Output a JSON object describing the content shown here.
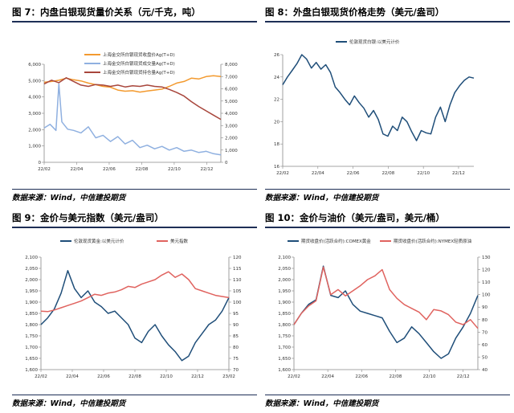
{
  "panels": [
    {
      "title": "图  7：内盘白银现货量价关系（元/千克，吨）",
      "source": "数据来源：Wind，中信建投期货"
    },
    {
      "title": "图  8：外盘白银现货价格走势（美元/盎司）",
      "source": "数据来源：Wind，中信建投期货"
    },
    {
      "title": "图  9：金价与美元指数（美元/盎司）",
      "source": "数据来源：Wind，中信建投期货"
    },
    {
      "title": "图  10：金价与油价（美元/盎司，美元/桶）",
      "source": "数据来源：Wind，中信建投期货"
    }
  ],
  "chart_data": [
    {
      "type": "line",
      "x_ticks": [
        "22/02",
        "22/04",
        "22/06",
        "22/08",
        "22/10",
        "22/12"
      ],
      "left_axis": {
        "ylim": [
          0,
          6000
        ],
        "ticks": [
          "0",
          "1,000",
          "2,000",
          "3,000",
          "4,000",
          "5,000",
          "6,000"
        ]
      },
      "right_axis": {
        "ylim": [
          0,
          8000
        ],
        "ticks": [
          "0",
          "1,000",
          "2,000",
          "3,000",
          "4,000",
          "5,000",
          "6,000",
          "7,000",
          "8,000"
        ]
      },
      "legend_position": "top",
      "series": [
        {
          "name": "上海金交所白银现货收盘价Ag(T+D)",
          "color": "#f39a2f",
          "axis": "left",
          "x": [
            0,
            0.5,
            1,
            1.5,
            2,
            2.5,
            3,
            3.5,
            4,
            4.5,
            5,
            5.5,
            6,
            6.5,
            7,
            7.5,
            8,
            8.5,
            9,
            9.5,
            10,
            10.5,
            11,
            11.5,
            12
          ],
          "values": [
            4900,
            4950,
            5020,
            5150,
            5050,
            4980,
            4850,
            4750,
            4650,
            4600,
            4420,
            4350,
            4380,
            4300,
            4360,
            4420,
            4480,
            4650,
            4850,
            4950,
            5150,
            5100,
            5250,
            5300,
            5250
          ]
        },
        {
          "name": "上海金交所白银现货成交量Ag(T+D)",
          "color": "#8fb0e0",
          "axis": "right",
          "x": [
            0,
            0.4,
            0.8,
            1.0,
            1.2,
            1.6,
            2.0,
            2.5,
            3.0,
            3.5,
            4.0,
            4.5,
            5.0,
            5.5,
            6.0,
            6.5,
            7.0,
            7.5,
            8.0,
            8.5,
            9.0,
            9.5,
            10.0,
            10.5,
            11.0,
            11.5,
            12.0
          ],
          "values": [
            2800,
            3100,
            2600,
            6400,
            3300,
            2700,
            2600,
            2400,
            2900,
            2000,
            2200,
            1700,
            2100,
            1500,
            1800,
            1200,
            1400,
            1100,
            1300,
            1000,
            1200,
            900,
            1000,
            800,
            900,
            700,
            600
          ]
        },
        {
          "name": "上海金交所白银现货持仓量Ag(T+D)",
          "color": "#a8463c",
          "axis": "right",
          "x": [
            0,
            0.5,
            1,
            1.5,
            2,
            2.5,
            3,
            3.5,
            4,
            4.5,
            5,
            5.5,
            6,
            6.5,
            7,
            7.5,
            8,
            8.5,
            9,
            9.5,
            10,
            10.5,
            11,
            11.5,
            12
          ],
          "values": [
            6400,
            6700,
            6500,
            6900,
            6600,
            6300,
            6200,
            6350,
            6300,
            6200,
            6300,
            6150,
            6250,
            6200,
            6300,
            6200,
            6150,
            5950,
            5700,
            5400,
            4950,
            4550,
            4200,
            3850,
            3500
          ]
        }
      ]
    },
    {
      "type": "line",
      "x_ticks": [
        "22/02",
        "22/04",
        "22/06",
        "22/08",
        "22/10",
        "22/12"
      ],
      "ylim": [
        16,
        26
      ],
      "y_ticks": [
        "16",
        "18",
        "20",
        "22",
        "24",
        "26"
      ],
      "legend_position": "top",
      "series": [
        {
          "name": "伦敦现货白银:以美元计价",
          "color": "#1f4e79",
          "x": [
            0,
            0.3,
            0.6,
            0.9,
            1.2,
            1.5,
            1.8,
            2.1,
            2.4,
            2.7,
            3.0,
            3.3,
            3.6,
            3.9,
            4.2,
            4.5,
            4.8,
            5.1,
            5.4,
            5.7,
            6.0,
            6.3,
            6.6,
            6.9,
            7.2,
            7.5,
            7.8,
            8.1,
            8.4,
            8.7,
            9.0,
            9.3,
            9.6,
            9.9,
            10.2,
            10.5,
            10.8,
            11.1,
            11.4,
            11.7,
            12.0
          ],
          "values": [
            23.3,
            24.0,
            24.6,
            25.2,
            26.0,
            25.6,
            24.8,
            25.3,
            24.7,
            25.1,
            24.4,
            23.1,
            22.6,
            22.0,
            21.5,
            22.3,
            21.7,
            21.2,
            20.4,
            21.0,
            20.2,
            18.9,
            18.7,
            19.6,
            19.2,
            20.4,
            20.0,
            19.1,
            18.3,
            19.2,
            19.0,
            18.9,
            20.4,
            21.3,
            20.0,
            21.5,
            22.6,
            23.2,
            23.7,
            24.0,
            23.9
          ]
        }
      ]
    },
    {
      "type": "line",
      "x_ticks": [
        "22/02",
        "22/04",
        "22/06",
        "22/08",
        "22/10",
        "22/12",
        "23/02"
      ],
      "left_axis": {
        "ylim": [
          1600,
          2100
        ],
        "ticks": [
          "1,600",
          "1,650",
          "1,700",
          "1,750",
          "1,800",
          "1,850",
          "1,900",
          "1,950",
          "2,000",
          "2,050",
          "2,100"
        ]
      },
      "right_axis": {
        "ylim": [
          70,
          120
        ],
        "ticks": [
          "70",
          "75",
          "80",
          "85",
          "90",
          "95",
          "100",
          "105",
          "110",
          "115",
          "120"
        ]
      },
      "legend_position": "top",
      "series": [
        {
          "name": "伦敦现货黄金:以美元计价",
          "color": "#1f4e79",
          "axis": "left",
          "x": [
            0,
            0.5,
            1,
            1.5,
            2,
            2.5,
            3,
            3.5,
            4,
            4.5,
            5,
            5.5,
            6,
            6.5,
            7,
            7.5,
            8,
            8.5,
            9,
            9.5,
            10,
            10.5,
            11,
            11.5,
            12,
            12.5,
            13,
            13.5,
            14
          ],
          "values": [
            1800,
            1830,
            1870,
            1940,
            2040,
            1960,
            1920,
            1950,
            1900,
            1880,
            1850,
            1860,
            1830,
            1800,
            1740,
            1720,
            1770,
            1800,
            1750,
            1710,
            1680,
            1640,
            1660,
            1720,
            1760,
            1800,
            1820,
            1860,
            1920
          ]
        },
        {
          "name": "美元指数",
          "color": "#e0635f",
          "axis": "right",
          "x": [
            0,
            0.5,
            1,
            1.5,
            2,
            2.5,
            3,
            3.5,
            4,
            4.5,
            5,
            5.5,
            6,
            6.5,
            7,
            7.5,
            8,
            8.5,
            9,
            9.5,
            10,
            10.5,
            11,
            11.5,
            12,
            12.5,
            13,
            13.5,
            14
          ],
          "values": [
            96,
            95.8,
            96.5,
            97.5,
            98.5,
            99.5,
            100.5,
            102,
            103.5,
            103,
            104,
            104.5,
            105.5,
            107,
            106.5,
            108,
            109,
            110,
            112,
            113.5,
            111,
            112.5,
            110,
            106,
            105,
            104,
            103,
            102.5,
            102
          ]
        }
      ]
    },
    {
      "type": "line",
      "x_ticks": [
        "22/02",
        "22/04",
        "22/06",
        "22/08",
        "22/10",
        "22/12"
      ],
      "left_axis": {
        "ylim": [
          1600,
          2100
        ],
        "ticks": [
          "1,600",
          "1,650",
          "1,700",
          "1,750",
          "1,800",
          "1,850",
          "1,900",
          "1,950",
          "2,000",
          "2,050",
          "2,100"
        ]
      },
      "right_axis": {
        "ylim": [
          40,
          130
        ],
        "ticks": [
          "40",
          "50",
          "60",
          "70",
          "80",
          "90",
          "100",
          "110",
          "120",
          "130"
        ]
      },
      "legend_position": "top",
      "series": [
        {
          "name": "期货收盘价(活跃合约):COMEX黄金",
          "color": "#1f4e79",
          "axis": "left",
          "x": [
            0,
            0.5,
            1,
            1.5,
            2,
            2.5,
            3,
            3.5,
            4,
            4.5,
            5,
            5.5,
            6,
            6.5,
            7,
            7.5,
            8,
            8.5,
            9,
            9.5,
            10,
            10.5,
            11,
            11.5,
            12,
            12.5
          ],
          "values": [
            1800,
            1850,
            1890,
            1910,
            2060,
            1930,
            1920,
            1950,
            1890,
            1860,
            1850,
            1840,
            1830,
            1770,
            1720,
            1740,
            1790,
            1760,
            1720,
            1680,
            1650,
            1670,
            1740,
            1790,
            1850,
            1930
          ]
        },
        {
          "name": "期货收盘价(活跃合约):NYMEX轻质原油",
          "color": "#e0635f",
          "axis": "right",
          "x": [
            0,
            0.5,
            1,
            1.5,
            2,
            2.5,
            3,
            3.5,
            4,
            4.5,
            5,
            5.5,
            6,
            6.5,
            7,
            7.5,
            8,
            8.5,
            9,
            9.5,
            10,
            10.5,
            11,
            11.5,
            12,
            12.5
          ],
          "values": [
            76,
            85,
            91,
            95,
            122,
            100,
            104,
            99,
            103,
            107,
            112,
            115,
            120,
            104,
            97,
            92,
            89,
            86,
            80,
            88,
            87,
            84,
            78,
            76,
            80,
            73
          ]
        }
      ]
    }
  ],
  "colors": {
    "rule": "#1e2f56",
    "axis": "#888888"
  }
}
